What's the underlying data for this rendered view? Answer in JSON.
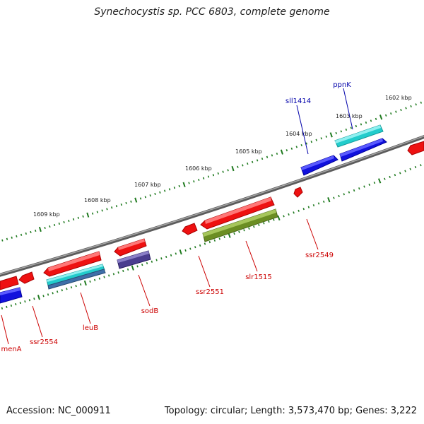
{
  "title": "Synechocystis sp. PCC 6803, complete genome",
  "footer": {
    "accession": "Accession: NC_000911",
    "stats": "Topology: circular; Length: 3,573,470 bp; Genes: 3,222"
  },
  "colors": {
    "backbone": "#7a7a7a",
    "tick": "#1f7a1f",
    "red": "#ee1111",
    "blue": "#1111dd",
    "cyan": "#22cccc",
    "olive": "#6b8e23",
    "purple": "#4a3d8f",
    "steel": "#3f6fa8",
    "label_red": "#cc0000",
    "label_blue": "#0000aa"
  },
  "kbp_labels": [
    "1602 kbp",
    "1603 kbp",
    "1604 kbp",
    "1605 kbp",
    "1606 kbp",
    "1607 kbp",
    "1608 kbp",
    "1609 kbp"
  ],
  "gene_labels": {
    "ppnK": "ppnK",
    "sll1414": "sll1414",
    "ssr2549": "ssr2549",
    "slr1515": "slr1515",
    "ssr2551": "ssr2551",
    "sodB": "sodB",
    "leuB": "leuB",
    "ssr2554": "ssr2554",
    "menA": "menA"
  }
}
